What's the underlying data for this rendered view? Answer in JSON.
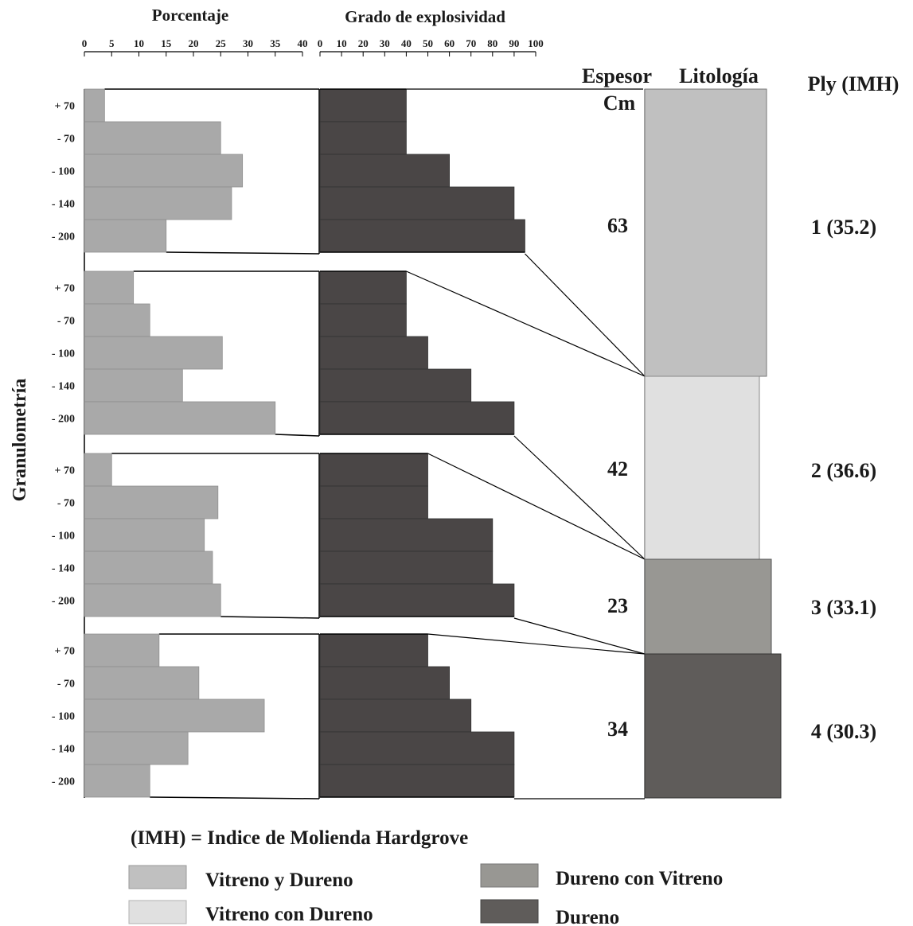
{
  "headers": {
    "porcentaje": "Porcentaje",
    "grado": "Grado de explosividad",
    "espesor": "Espesor",
    "cm": "Cm",
    "litologia": "Litología",
    "ply": "Ply (IMH)",
    "granulometria": "Granulometría"
  },
  "axes": {
    "porcentaje_ticks": [
      "0",
      "5",
      "10",
      "15",
      "20",
      "25",
      "30",
      "35",
      "40"
    ],
    "porcentaje_range": [
      0,
      40
    ],
    "grado_ticks": [
      "0",
      "10",
      "20",
      "30",
      "40",
      "50",
      "60",
      "70",
      "80",
      "90",
      "100"
    ],
    "grado_range": [
      0,
      100
    ]
  },
  "chart_data": {
    "type": "bar",
    "categories": [
      "+ 70",
      "- 70",
      "- 100",
      "- 140",
      "- 200"
    ],
    "plies": [
      {
        "ply": "1 (35.2)",
        "espesor": "63",
        "lithology": "Vitreno y Dureno",
        "porcentaje": [
          3.7,
          25,
          29,
          27,
          15
        ],
        "grado": [
          40,
          40,
          60,
          90,
          95
        ]
      },
      {
        "ply": "2 (36.6)",
        "espesor": "42",
        "lithology": "Vitreno con Dureno",
        "porcentaje": [
          9,
          12,
          25.3,
          18,
          35
        ],
        "grado": [
          40,
          40,
          50,
          70,
          90
        ]
      },
      {
        "ply": "3 (33.1)",
        "espesor": "23",
        "lithology": "Dureno con Vitreno",
        "porcentaje": [
          5,
          24.5,
          22,
          23.5,
          25
        ],
        "grado": [
          50,
          50,
          80,
          80,
          90
        ]
      },
      {
        "ply": "4 (30.3)",
        "espesor": "34",
        "lithology": "Dureno",
        "porcentaje": [
          13.7,
          21,
          33,
          19,
          12
        ],
        "grado": [
          50,
          60,
          70,
          90,
          90
        ]
      }
    ]
  },
  "legend": {
    "title": "(IMH) = Indice de Molienda Hardgrove",
    "items": [
      {
        "label": "Vitreno y Dureno",
        "color": "#c0c0c0"
      },
      {
        "label": "Vitreno con Dureno",
        "color": "#e0e0e0"
      },
      {
        "label": "Dureno con Vitreno",
        "color": "#989793"
      },
      {
        "label": "Dureno",
        "color": "#5f5c5a"
      }
    ]
  },
  "colors": {
    "porcentaje_bar": "#a9a9a9",
    "grado_bar": "#4a4646",
    "lithology": [
      "#c0c0c0",
      "#e0e0e0",
      "#989793",
      "#5f5c5a"
    ]
  }
}
